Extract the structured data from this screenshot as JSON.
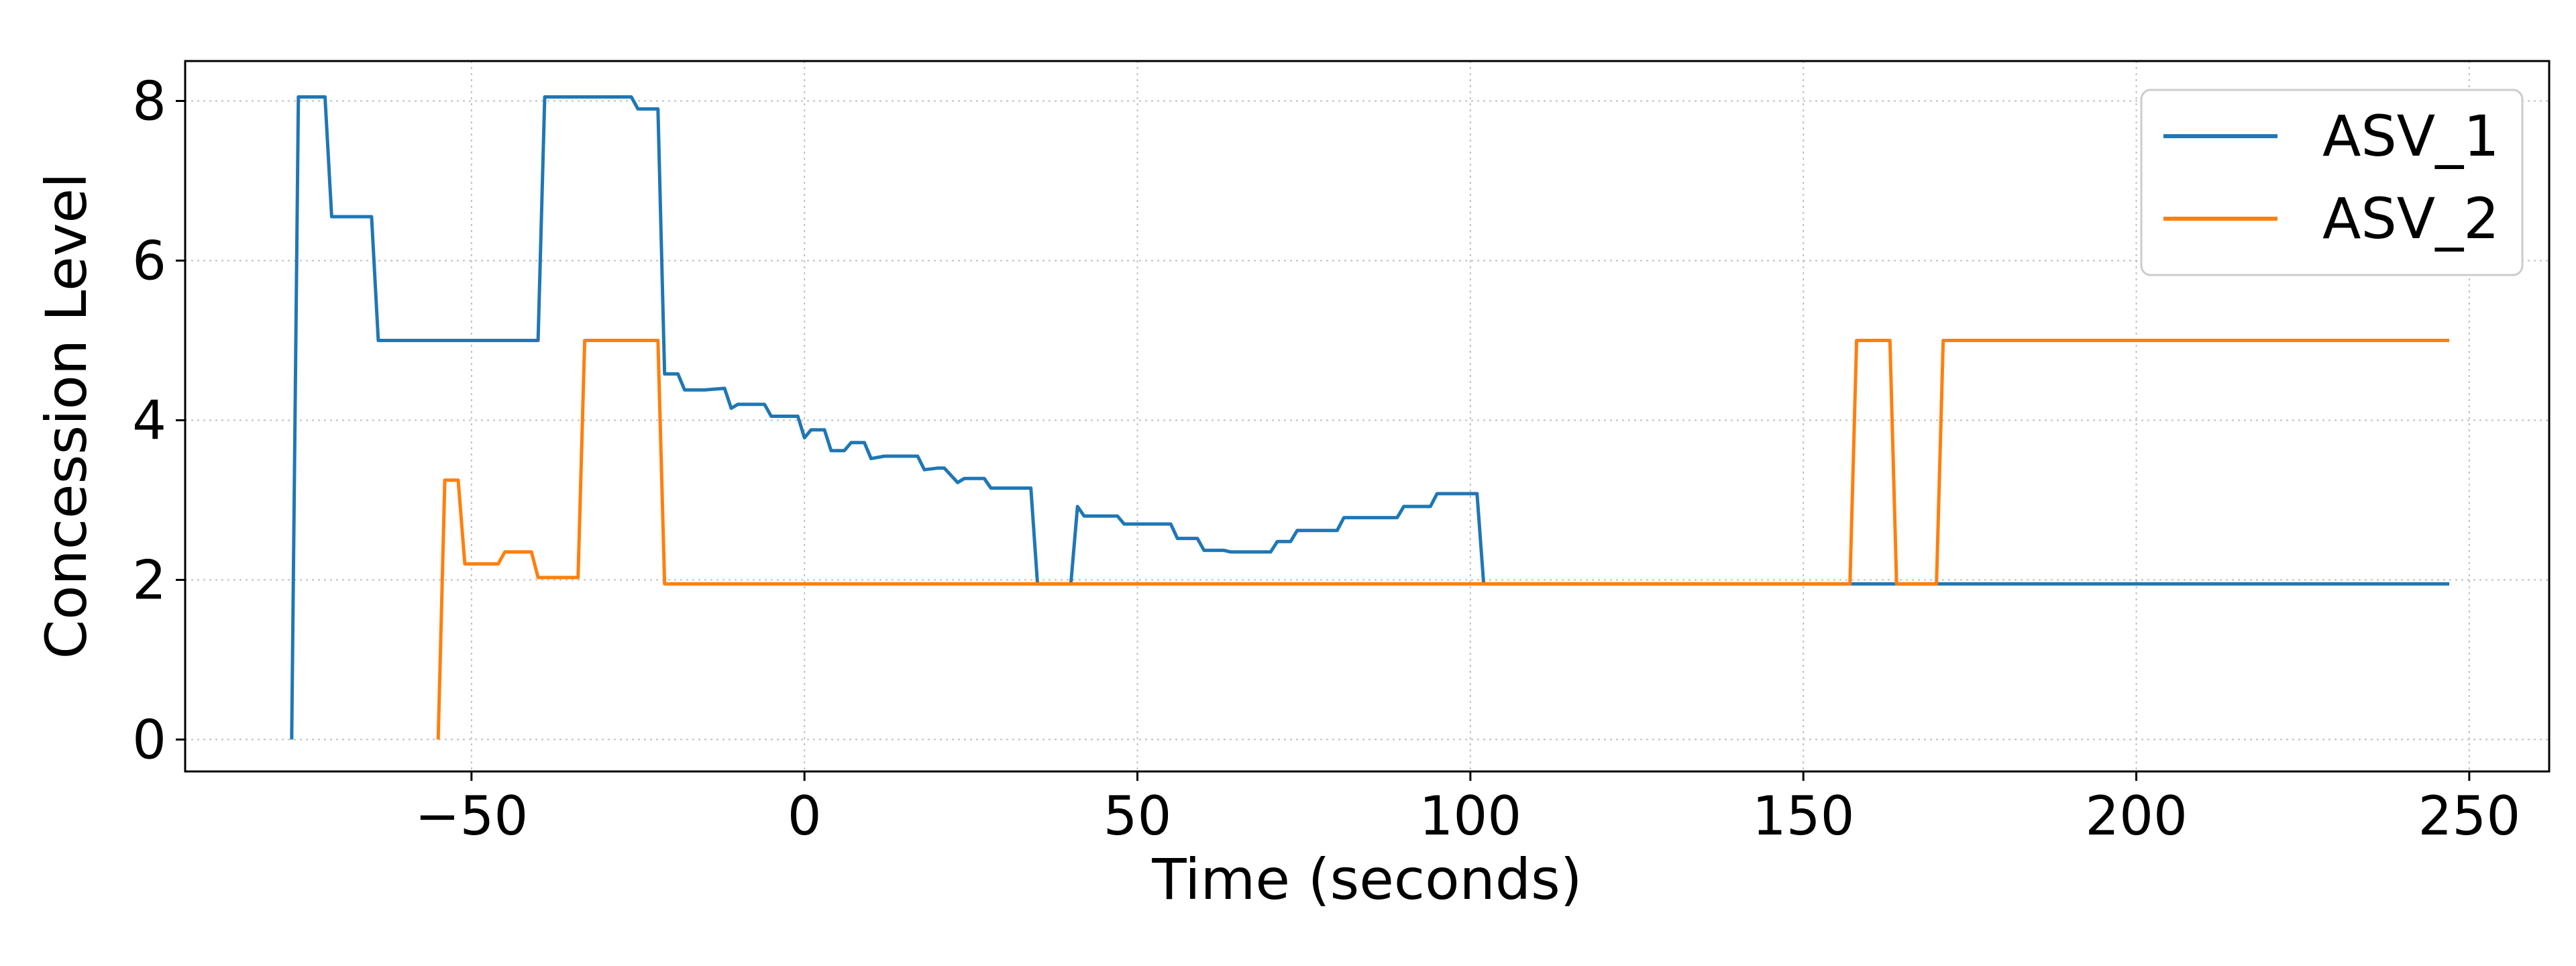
{
  "chart_data": {
    "type": "line",
    "title": "",
    "xlabel": "Time (seconds)",
    "ylabel": "Concession Level",
    "xlim": [
      -93,
      262
    ],
    "ylim": [
      -0.4,
      8.5
    ],
    "xticks": [
      -50,
      0,
      50,
      100,
      150,
      200,
      250
    ],
    "yticks": [
      0,
      2,
      4,
      6,
      8
    ],
    "xtick_labels": [
      "−50",
      "0",
      "50",
      "100",
      "150",
      "200",
      "250"
    ],
    "ytick_labels": [
      "0",
      "2",
      "4",
      "6",
      "8"
    ],
    "grid": true,
    "legend_position": "top-right",
    "series": [
      {
        "name": "ASV_1",
        "color": "#1f77b4",
        "x": [
          -77,
          -76,
          -72,
          -71,
          -65,
          -64,
          -40,
          -39,
          -26,
          -25,
          -22,
          -21,
          -19,
          -18,
          -15,
          -12,
          -11,
          -10,
          -6,
          -5,
          -2,
          -1,
          0,
          1,
          3,
          4,
          6,
          7,
          9,
          10,
          12,
          13,
          17,
          18,
          20,
          21,
          23,
          24,
          27,
          28,
          34,
          35,
          39,
          40,
          41,
          42,
          47,
          48,
          55,
          56,
          59,
          60,
          63,
          64,
          70,
          71,
          73,
          74,
          80,
          81,
          89,
          90,
          94,
          95,
          101,
          102,
          158,
          159,
          247
        ],
        "y": [
          0,
          8.05,
          8.05,
          6.55,
          6.55,
          5.0,
          5.0,
          8.05,
          8.05,
          7.9,
          7.9,
          4.58,
          4.58,
          4.38,
          4.38,
          4.4,
          4.15,
          4.2,
          4.2,
          4.05,
          4.05,
          4.05,
          3.78,
          3.88,
          3.88,
          3.62,
          3.62,
          3.72,
          3.72,
          3.52,
          3.55,
          3.55,
          3.55,
          3.38,
          3.4,
          3.4,
          3.22,
          3.27,
          3.27,
          3.15,
          3.15,
          1.95,
          1.95,
          1.95,
          2.92,
          2.8,
          2.8,
          2.7,
          2.7,
          2.52,
          2.52,
          2.37,
          2.37,
          2.35,
          2.35,
          2.48,
          2.48,
          2.62,
          2.62,
          2.78,
          2.78,
          2.92,
          2.92,
          3.08,
          3.08,
          1.95,
          1.95,
          1.95,
          1.95
        ]
      },
      {
        "name": "ASV_2",
        "color": "#ff7f0e",
        "x": [
          -55,
          -54,
          -52,
          -51,
          -46,
          -45,
          -41,
          -40,
          -34,
          -33,
          -22,
          -21,
          157,
          158,
          163,
          164,
          169,
          170,
          171,
          247
        ],
        "y": [
          0,
          3.25,
          3.25,
          2.2,
          2.2,
          2.35,
          2.35,
          2.03,
          2.03,
          5.0,
          5.0,
          1.95,
          1.95,
          5.0,
          5.0,
          1.95,
          1.95,
          1.95,
          5.0,
          5.0
        ]
      }
    ]
  }
}
